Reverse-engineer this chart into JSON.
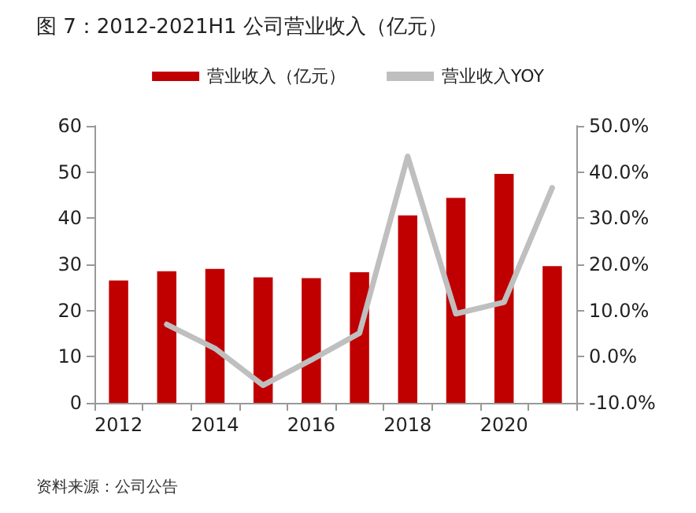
{
  "chart_data": {
    "type": "bar",
    "title": "图 7：2012-2021H1 公司营业收入（亿元）",
    "categories": [
      "2012",
      null,
      "2014",
      null,
      "2016",
      null,
      "2018",
      null,
      "2020",
      null
    ],
    "series": [
      {
        "name": "营业收入（亿元）",
        "color": "#c00000",
        "values": [
          26.5,
          28.5,
          29,
          27.2,
          27,
          28.3,
          40.6,
          44.4,
          49.6,
          29.6
        ]
      },
      {
        "name": "营业收入YOY",
        "type": "line",
        "axis": "y2",
        "color": "#bfbfbf",
        "values": [
          null,
          7.0,
          1.8,
          -6.2,
          -0.7,
          5.1,
          43.4,
          9.3,
          11.8,
          36.6
        ]
      }
    ],
    "ylim": [
      0,
      60
    ],
    "yticks": [
      0,
      10,
      20,
      30,
      40,
      50,
      60
    ],
    "y2lim": [
      -10,
      50
    ],
    "y2ticks": [
      {
        "value": -10,
        "label": "-10.0%"
      },
      {
        "value": 0,
        "label": "0.0%"
      },
      {
        "value": 10,
        "label": "10.0%"
      },
      {
        "value": 20,
        "label": "20.0%"
      },
      {
        "value": 30,
        "label": "30.0%"
      },
      {
        "value": 40,
        "label": "40.0%"
      },
      {
        "value": 50,
        "label": "50.0%"
      }
    ],
    "grid": false,
    "legend": "top",
    "marker": "none",
    "line_style": "solid",
    "annotations": [
      "资料来源：公司公告"
    ]
  }
}
